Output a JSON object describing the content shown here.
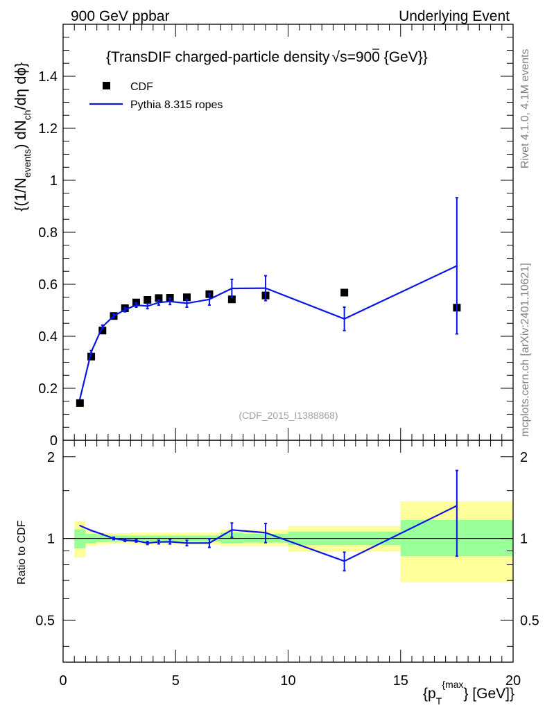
{
  "header": {
    "left": "900 GeV ppbar",
    "right": "Underlying Event"
  },
  "side": {
    "rivet": "Rivet 4.1.0,  4.1M events",
    "mcplots": "mcplots.cern.ch [arXiv:2401.10621]"
  },
  "chart_data": [
    {
      "type": "scatter",
      "title_main": "{TransDIF charged-particle density",
      "title_sqrt": "√",
      "title_s": "s=900 {GeV}}",
      "ylabel_parts": [
        "{(1/N",
        "events",
        ") dN",
        "ch",
        "/dη  dϕ}"
      ],
      "analysis_id": "(CDF_2015_I1388868)",
      "xlim": [
        0,
        20
      ],
      "ylim": [
        0,
        1.6
      ],
      "y_tick_labels": [
        "0",
        "0.2",
        "0.4",
        "0.6",
        "0.8",
        "1",
        "1.2",
        "1.4"
      ],
      "legend": [
        {
          "name": "CDF",
          "marker": "square",
          "color": "#000000"
        },
        {
          "name": "Pythia 8.315 ropes",
          "marker": "line",
          "color": "#0a14e6"
        }
      ],
      "series": [
        {
          "name": "CDF",
          "x": [
            0.75,
            1.25,
            1.75,
            2.25,
            2.75,
            3.25,
            3.75,
            4.25,
            4.75,
            5.5,
            6.5,
            7.5,
            9.0,
            12.5,
            17.5
          ],
          "y": [
            0.143,
            0.322,
            0.422,
            0.478,
            0.508,
            0.53,
            0.54,
            0.547,
            0.548,
            0.55,
            0.562,
            0.542,
            0.557,
            0.568,
            0.51
          ]
        },
        {
          "name": "Pythia 8.315 ropes",
          "x": [
            0.75,
            1.25,
            1.75,
            2.25,
            2.75,
            3.25,
            3.75,
            4.25,
            4.75,
            5.5,
            6.5,
            7.5,
            9.0,
            12.5,
            17.5
          ],
          "y": [
            0.16,
            0.34,
            0.437,
            0.478,
            0.502,
            0.52,
            0.516,
            0.53,
            0.534,
            0.527,
            0.542,
            0.584,
            0.585,
            0.467,
            0.671
          ],
          "yerr": [
            0.004,
            0.005,
            0.006,
            0.007,
            0.008,
            0.008,
            0.01,
            0.01,
            0.012,
            0.015,
            0.022,
            0.035,
            0.048,
            0.045,
            0.262
          ]
        }
      ]
    },
    {
      "type": "line",
      "ylabel": "Ratio to CDF",
      "xlabel_parts": [
        "{p",
        "T",
        "{max",
        "} [GeV]}"
      ],
      "xlim": [
        0,
        20
      ],
      "ylim": [
        0.35,
        2.3
      ],
      "y_tick_labels": [
        "0.5",
        "1",
        "2"
      ],
      "x_tick_labels": [
        "0",
        "5",
        "10",
        "15",
        "20"
      ],
      "bands": [
        {
          "x_low": 0.5,
          "x_high": 1.0,
          "stat_low": 0.92,
          "stat_high": 1.08,
          "tot_low": 0.85,
          "tot_high": 1.16
        },
        {
          "x_low": 1.0,
          "x_high": 1.5,
          "stat_low": 0.96,
          "stat_high": 1.04,
          "tot_low": 0.94,
          "tot_high": 1.07
        },
        {
          "x_low": 1.5,
          "x_high": 2.0,
          "stat_low": 0.97,
          "stat_high": 1.03,
          "tot_low": 0.95,
          "tot_high": 1.05
        },
        {
          "x_low": 2.0,
          "x_high": 3.0,
          "stat_low": 0.975,
          "stat_high": 1.025,
          "tot_low": 0.955,
          "tot_high": 1.045
        },
        {
          "x_low": 3.0,
          "x_high": 5.0,
          "stat_low": 0.975,
          "stat_high": 1.025,
          "tot_low": 0.95,
          "tot_high": 1.05
        },
        {
          "x_low": 5.0,
          "x_high": 7.0,
          "stat_low": 0.975,
          "stat_high": 1.025,
          "tot_low": 0.95,
          "tot_high": 1.05
        },
        {
          "x_low": 7.0,
          "x_high": 8.0,
          "stat_low": 0.96,
          "stat_high": 1.05,
          "tot_low": 0.935,
          "tot_high": 1.08
        },
        {
          "x_low": 8.0,
          "x_high": 10.0,
          "stat_low": 0.965,
          "stat_high": 1.04,
          "tot_low": 0.935,
          "tot_high": 1.075
        },
        {
          "x_low": 10.0,
          "x_high": 15.0,
          "stat_low": 0.945,
          "stat_high": 1.06,
          "tot_low": 0.895,
          "tot_high": 1.11
        },
        {
          "x_low": 15.0,
          "x_high": 20.0,
          "stat_low": 0.86,
          "stat_high": 1.17,
          "tot_low": 0.69,
          "tot_high": 1.37
        }
      ],
      "series": [
        {
          "name": "Pythia 8.315 ropes / CDF",
          "x": [
            0.75,
            1.25,
            1.75,
            2.25,
            2.75,
            3.25,
            3.75,
            4.25,
            4.75,
            5.5,
            6.5,
            7.5,
            9.0,
            12.5,
            17.5
          ],
          "y": [
            1.115,
            1.07,
            1.035,
            1.0,
            0.985,
            0.98,
            0.962,
            0.97,
            0.972,
            0.962,
            0.962,
            1.075,
            1.05,
            0.825,
            1.32
          ],
          "yerr": [
            0.006,
            0.008,
            0.009,
            0.01,
            0.01,
            0.01,
            0.012,
            0.015,
            0.018,
            0.022,
            0.035,
            0.065,
            0.085,
            0.065,
            0.46
          ]
        }
      ]
    }
  ]
}
